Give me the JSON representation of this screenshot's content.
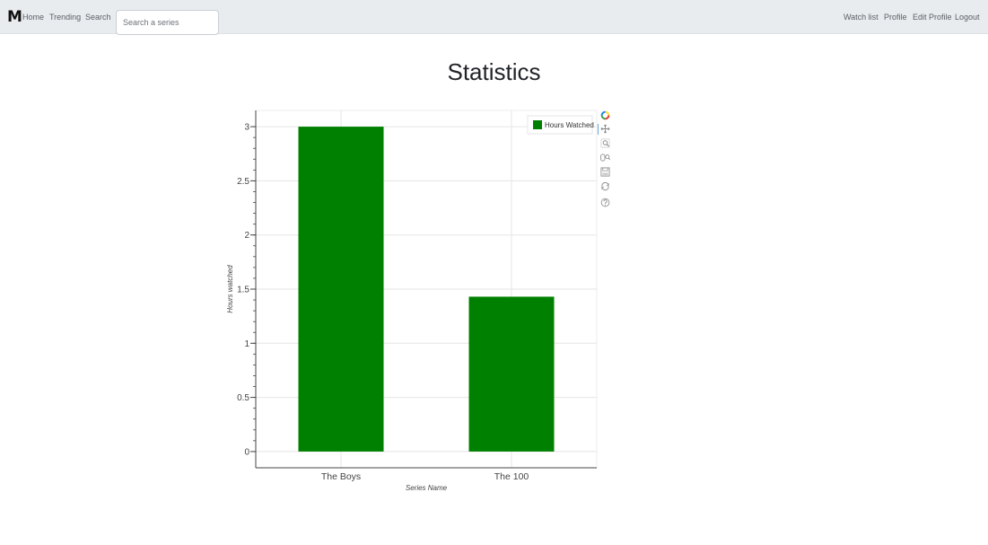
{
  "navbar": {
    "brand": "M",
    "links_left": [
      {
        "id": "home",
        "label": "Home"
      },
      {
        "id": "trending",
        "label": "Trending"
      },
      {
        "id": "search",
        "label": "Search"
      }
    ],
    "search": {
      "placeholder": "Search a series",
      "value": ""
    },
    "links_right": [
      {
        "id": "watch-list",
        "label": "Watch list"
      },
      {
        "id": "profile",
        "label": "Profile"
      },
      {
        "id": "edit-profile",
        "label": "Edit Profile"
      },
      {
        "id": "logout",
        "label": "Logout"
      }
    ]
  },
  "page": {
    "title": "Statistics"
  },
  "chart_data": {
    "type": "bar",
    "categories": [
      "The Boys",
      "The 100"
    ],
    "series": [
      {
        "name": "Hours Watched",
        "values": [
          3.0,
          1.43
        ],
        "color": "#008000"
      }
    ],
    "xlabel": "Series Name",
    "ylabel": "Hours watched",
    "ylim": [
      -0.15,
      3.15
    ],
    "yticks": [
      0,
      0.5,
      1,
      1.5,
      2,
      2.5,
      3
    ],
    "ytick_labels": [
      "0",
      "0.5",
      "1",
      "1.5",
      "2",
      "2.5",
      "3"
    ],
    "grid": true,
    "legend": "top-right"
  },
  "toolbar": {
    "tools": [
      "bokeh-logo-icon",
      "pan-icon",
      "box-zoom-icon",
      "wheel-zoom-icon",
      "save-icon",
      "reset-icon",
      "help-icon"
    ]
  }
}
